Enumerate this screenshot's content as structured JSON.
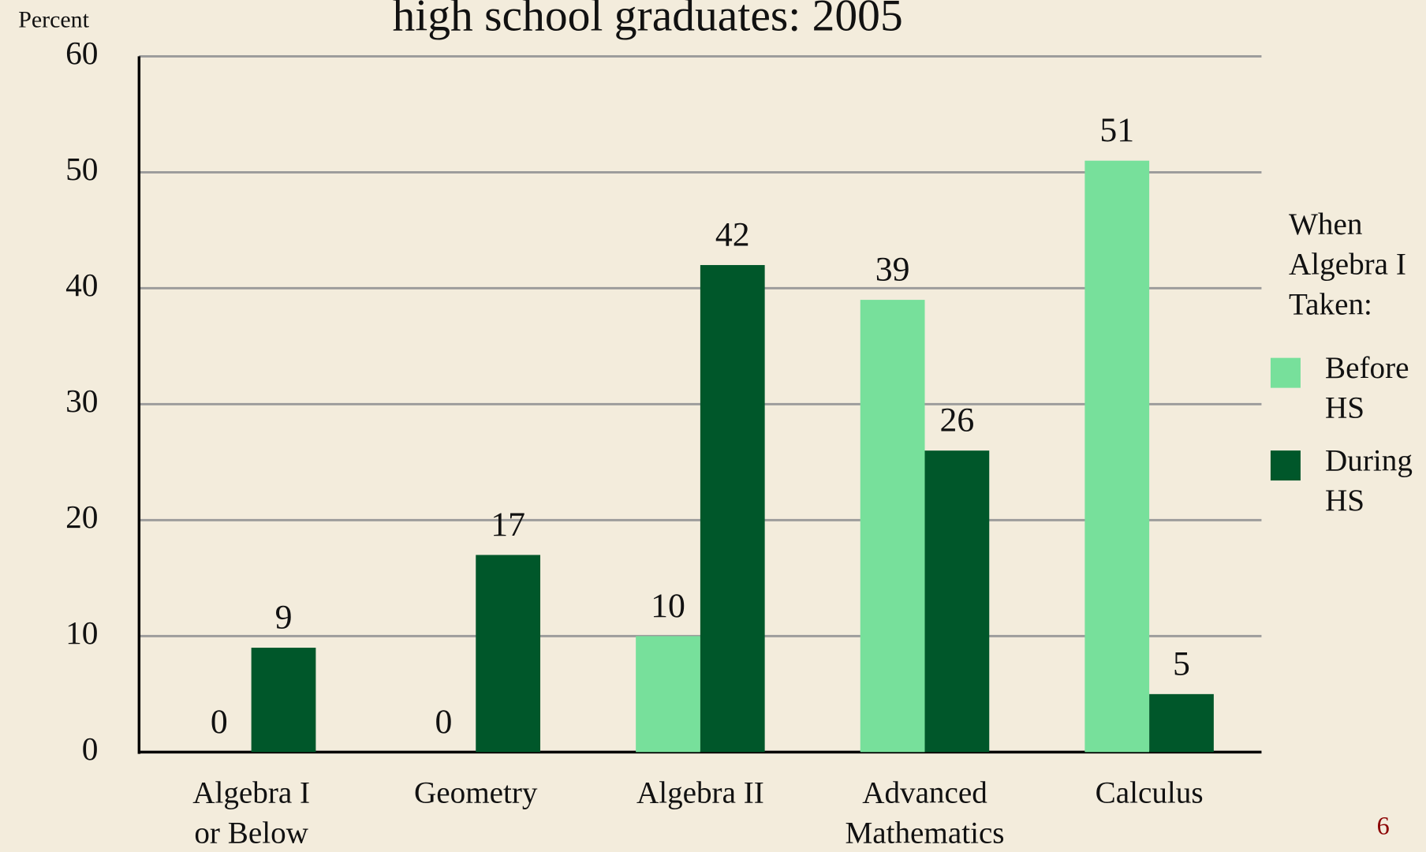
{
  "chart_data": {
    "type": "bar",
    "title": "high school graduates: 2005",
    "y_label": "Percent",
    "categories": [
      [
        "Algebra I",
        "or Below"
      ],
      [
        "Geometry"
      ],
      [
        "Algebra II"
      ],
      [
        "Advanced",
        "Mathematics"
      ],
      [
        "Calculus"
      ]
    ],
    "legend_title": "When Algebra I Taken:",
    "series": [
      {
        "name": "Before HS",
        "color": "#77e09b",
        "values": [
          0,
          0,
          10,
          39,
          51
        ]
      },
      {
        "name": "During HS",
        "color": "#00572a",
        "values": [
          9,
          17,
          42,
          26,
          5
        ]
      }
    ],
    "ylim": [
      0,
      60
    ],
    "yticks": [
      0,
      10,
      20,
      30,
      40,
      50,
      60
    ],
    "grid": true,
    "legend": "right",
    "page_number": "6"
  }
}
